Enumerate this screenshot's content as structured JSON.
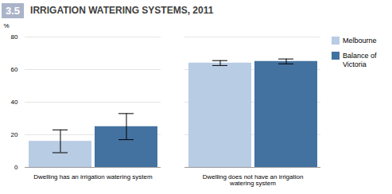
{
  "chart_data": {
    "type": "bar",
    "title": "IRRIGATION WATERING SYSTEMS, 2011",
    "annotations": [
      {
        "text": "3.5",
        "color": "#aab4c8"
      }
    ],
    "ylabel": "%",
    "categories": [
      "Dwelling has an irrigation watering system",
      "Dwelling does not have an irrigation\nwatering system"
    ],
    "series": [
      {
        "name": "Melbourne",
        "color": "#b8cce4",
        "values": [
          16,
          64
        ],
        "yerr": [
          7,
          1.5
        ]
      },
      {
        "name": "Balance of\nVictoria",
        "color": "#4472a0",
        "values": [
          25,
          65
        ],
        "yerr": [
          8,
          1.5
        ]
      }
    ],
    "ylim": [
      0,
      80
    ],
    "yticks": [
      0,
      20,
      40,
      60,
      80
    ],
    "grid": true,
    "legend": "right"
  }
}
